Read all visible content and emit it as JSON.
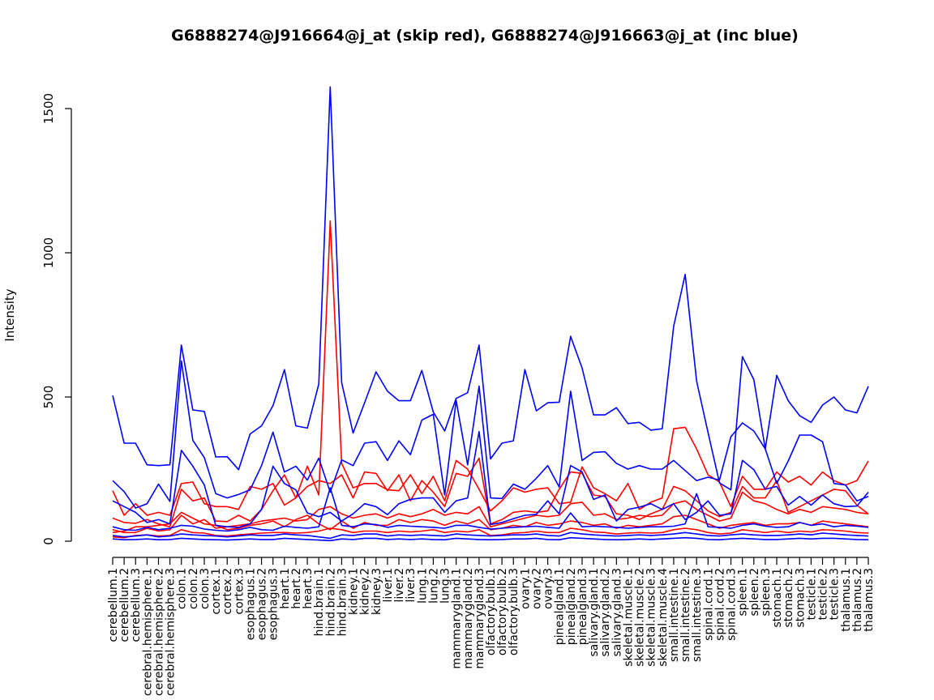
{
  "chart_data": {
    "type": "line",
    "title": "G6888274@J916664@j_at (skip red), G6888274@J916663@j_at (inc blue)",
    "xlabel": "",
    "ylabel": "Intensity",
    "ylim": [
      0,
      1600
    ],
    "yticks": [
      0,
      500,
      1000,
      1500
    ],
    "grid": false,
    "legend": "none",
    "categories": [
      "cerebellum.1",
      "cerebellum.2",
      "cerebellum.3",
      "cerebral.hemisphere.1",
      "cerebral.hemisphere.2",
      "cerebral.hemisphere.3",
      "colon.1",
      "colon.2",
      "colon.3",
      "cortex.1",
      "cortex.2",
      "cortex.3",
      "esophagus.1",
      "esophagus.2",
      "esophagus.3",
      "heart.1",
      "heart.2",
      "heart.3",
      "hind.brain.1",
      "hind.brain.2",
      "hind.brain.3",
      "kidney.1",
      "kidney.2",
      "kidney.3",
      "liver.1",
      "liver.2",
      "liver.3",
      "lung.1",
      "lung.2",
      "lung.3",
      "mammarygland.1",
      "mammarygland.2",
      "mammarygland.3",
      "olfactory.bulb.1",
      "olfactory.bulb.2",
      "olfactory.bulb.3",
      "ovary.1",
      "ovary.2",
      "ovary.3",
      "pinealgland.1",
      "pinealgland.2",
      "pinealgland.3",
      "salivary.gland.1",
      "salivary.gland.2",
      "salivary.gland.3",
      "skeletal.muscle.1",
      "skeletal.muscle.2",
      "skeletal.muscle.3",
      "skeletal.muscle.4",
      "small.intestine.1",
      "small.intestine.2",
      "small.intestine.3",
      "spinal.cord.1",
      "spinal.cord.2",
      "spinal.cord.3",
      "spleen.1",
      "spleen.2",
      "spleen.3",
      "stomach.1",
      "stomach.2",
      "stomach.3",
      "testicle.1",
      "testicle.2",
      "testicle.3",
      "thalamus.1",
      "thalamus.2",
      "thalamus.3"
    ],
    "series": [
      {
        "name": "blue-1",
        "color": "#0000ff",
        "values": [
          505,
          340,
          340,
          265,
          262,
          265,
          680,
          455,
          450,
          292,
          293,
          248,
          372,
          400,
          470,
          595,
          400,
          392,
          545,
          1575,
          550,
          375,
          480,
          587,
          520,
          487,
          487,
          592,
          448,
          382,
          495,
          515,
          680,
          285,
          340,
          348,
          595,
          452,
          480,
          482,
          710,
          600,
          438,
          438,
          463,
          408,
          412,
          385,
          390,
          745,
          925,
          555,
          377,
          202,
          178,
          640,
          560,
          320,
          575,
          487,
          435,
          412,
          472,
          500,
          455,
          445,
          537
        ]
      },
      {
        "name": "blue-2",
        "color": "#0000ff",
        "values": [
          210,
          172,
          115,
          130,
          198,
          138,
          625,
          350,
          290,
          165,
          150,
          162,
          178,
          262,
          378,
          240,
          260,
          212,
          288,
          170,
          282,
          262,
          340,
          345,
          280,
          348,
          300,
          420,
          440,
          160,
          488,
          265,
          538,
          150,
          148,
          198,
          180,
          218,
          262,
          188,
          520,
          280,
          308,
          310,
          270,
          250,
          262,
          250,
          250,
          280,
          245,
          210,
          222,
          212,
          362,
          410,
          382,
          320,
          200,
          278,
          368,
          368,
          345,
          200,
          195,
          140,
          155
        ]
      },
      {
        "name": "blue-3",
        "color": "#0000ff",
        "values": [
          140,
          120,
          100,
          65,
          75,
          60,
          315,
          260,
          195,
          55,
          50,
          48,
          60,
          110,
          260,
          200,
          178,
          98,
          85,
          100,
          70,
          95,
          130,
          120,
          92,
          130,
          145,
          150,
          150,
          100,
          140,
          150,
          380,
          58,
          65,
          78,
          90,
          93,
          140,
          95,
          262,
          240,
          145,
          160,
          70,
          110,
          118,
          130,
          110,
          130,
          75,
          100,
          140,
          90,
          95,
          280,
          248,
          180,
          190,
          125,
          155,
          125,
          160,
          130,
          120,
          122,
          170
        ]
      },
      {
        "name": "blue-4",
        "color": "#0000ff",
        "values": [
          50,
          40,
          38,
          48,
          40,
          45,
          55,
          52,
          42,
          38,
          35,
          40,
          48,
          40,
          38,
          52,
          48,
          45,
          50,
          185,
          55,
          50,
          60,
          58,
          48,
          55,
          52,
          50,
          48,
          45,
          55,
          55,
          48,
          42,
          45,
          48,
          50,
          52,
          48,
          45,
          98,
          50,
          52,
          50,
          48,
          45,
          48,
          50,
          50,
          52,
          60,
          165,
          50,
          48,
          45,
          55,
          60,
          52,
          48,
          50,
          65,
          55,
          60,
          50,
          55,
          52,
          48
        ]
      },
      {
        "name": "blue-5",
        "color": "#0000ff",
        "values": [
          20,
          15,
          18,
          22,
          15,
          18,
          25,
          22,
          20,
          18,
          15,
          18,
          22,
          20,
          20,
          25,
          22,
          20,
          15,
          10,
          22,
          20,
          25,
          25,
          18,
          22,
          20,
          22,
          20,
          18,
          25,
          22,
          20,
          18,
          20,
          22,
          22,
          25,
          20,
          18,
          30,
          25,
          22,
          20,
          18,
          20,
          22,
          20,
          22,
          25,
          30,
          25,
          20,
          18,
          22,
          25,
          22,
          20,
          20,
          22,
          25,
          22,
          28,
          25,
          22,
          20,
          18
        ]
      },
      {
        "name": "blue-6",
        "color": "#0000ff",
        "values": [
          8,
          5,
          6,
          8,
          5,
          6,
          10,
          8,
          6,
          5,
          4,
          6,
          8,
          6,
          6,
          10,
          8,
          6,
          4,
          2,
          8,
          6,
          10,
          10,
          6,
          8,
          6,
          8,
          6,
          5,
          10,
          8,
          6,
          5,
          6,
          8,
          8,
          10,
          6,
          5,
          12,
          10,
          8,
          6,
          5,
          6,
          8,
          6,
          8,
          10,
          12,
          10,
          6,
          5,
          8,
          10,
          8,
          6,
          6,
          8,
          10,
          8,
          10,
          10,
          8,
          6,
          5
        ]
      },
      {
        "name": "red-1",
        "color": "#ff0000",
        "values": [
          175,
          90,
          130,
          90,
          100,
          90,
          200,
          205,
          130,
          120,
          120,
          110,
          190,
          180,
          200,
          125,
          150,
          260,
          160,
          1110,
          270,
          185,
          200,
          200,
          178,
          175,
          230,
          165,
          225,
          140,
          280,
          250,
          180,
          105,
          140,
          185,
          170,
          180,
          185,
          130,
          135,
          258,
          185,
          165,
          140,
          200,
          110,
          135,
          150,
          390,
          395,
          320,
          230,
          205,
          120,
          225,
          180,
          180,
          240,
          205,
          225,
          195,
          240,
          210,
          195,
          210,
          278
        ]
      },
      {
        "name": "red-2",
        "color": "#ff0000",
        "values": [
          80,
          65,
          62,
          75,
          60,
          50,
          180,
          140,
          150,
          70,
          68,
          90,
          70,
          110,
          175,
          230,
          150,
          190,
          210,
          200,
          230,
          150,
          240,
          235,
          175,
          230,
          140,
          210,
          170,
          120,
          235,
          225,
          288,
          60,
          75,
          100,
          105,
          100,
          105,
          180,
          240,
          235,
          160,
          155,
          95,
          90,
          75,
          95,
          110,
          190,
          175,
          140,
          105,
          85,
          100,
          190,
          150,
          150,
          210,
          100,
          120,
          140,
          160,
          180,
          175,
          125,
          95
        ]
      },
      {
        "name": "red-3",
        "color": "#ff0000",
        "values": [
          40,
          30,
          30,
          45,
          35,
          40,
          90,
          60,
          75,
          45,
          50,
          55,
          60,
          70,
          75,
          80,
          70,
          75,
          110,
          120,
          95,
          80,
          90,
          95,
          80,
          95,
          85,
          95,
          110,
          90,
          100,
          95,
          120,
          50,
          60,
          70,
          80,
          90,
          85,
          90,
          130,
          135,
          90,
          95,
          75,
          80,
          90,
          85,
          90,
          130,
          140,
          110,
          90,
          70,
          80,
          170,
          140,
          130,
          110,
          95,
          110,
          100,
          120,
          115,
          110,
          100,
          95
        ]
      },
      {
        "name": "red-4",
        "color": "#ff0000",
        "values": [
          30,
          35,
          50,
          50,
          55,
          60,
          100,
          80,
          60,
          55,
          40,
          45,
          55,
          60,
          70,
          50,
          75,
          90,
          60,
          40,
          70,
          45,
          65,
          55,
          55,
          75,
          65,
          75,
          70,
          55,
          70,
          60,
          75,
          40,
          45,
          55,
          50,
          65,
          55,
          60,
          70,
          65,
          55,
          60,
          45,
          55,
          50,
          55,
          60,
          85,
          90,
          75,
          60,
          45,
          55,
          60,
          65,
          55,
          60,
          60,
          65,
          55,
          70,
          65,
          60,
          55,
          50
        ]
      },
      {
        "name": "red-5",
        "color": "#ff0000",
        "values": [
          15,
          12,
          20,
          22,
          18,
          20,
          40,
          30,
          28,
          20,
          18,
          22,
          25,
          28,
          30,
          30,
          28,
          30,
          35,
          45,
          40,
          30,
          35,
          35,
          30,
          35,
          32,
          35,
          40,
          30,
          35,
          32,
          40,
          20,
          22,
          28,
          30,
          35,
          30,
          30,
          45,
          40,
          32,
          30,
          25,
          28,
          30,
          28,
          30,
          40,
          45,
          40,
          30,
          25,
          28,
          40,
          35,
          30,
          35,
          30,
          35,
          32,
          40,
          38,
          35,
          30,
          28
        ]
      }
    ]
  }
}
